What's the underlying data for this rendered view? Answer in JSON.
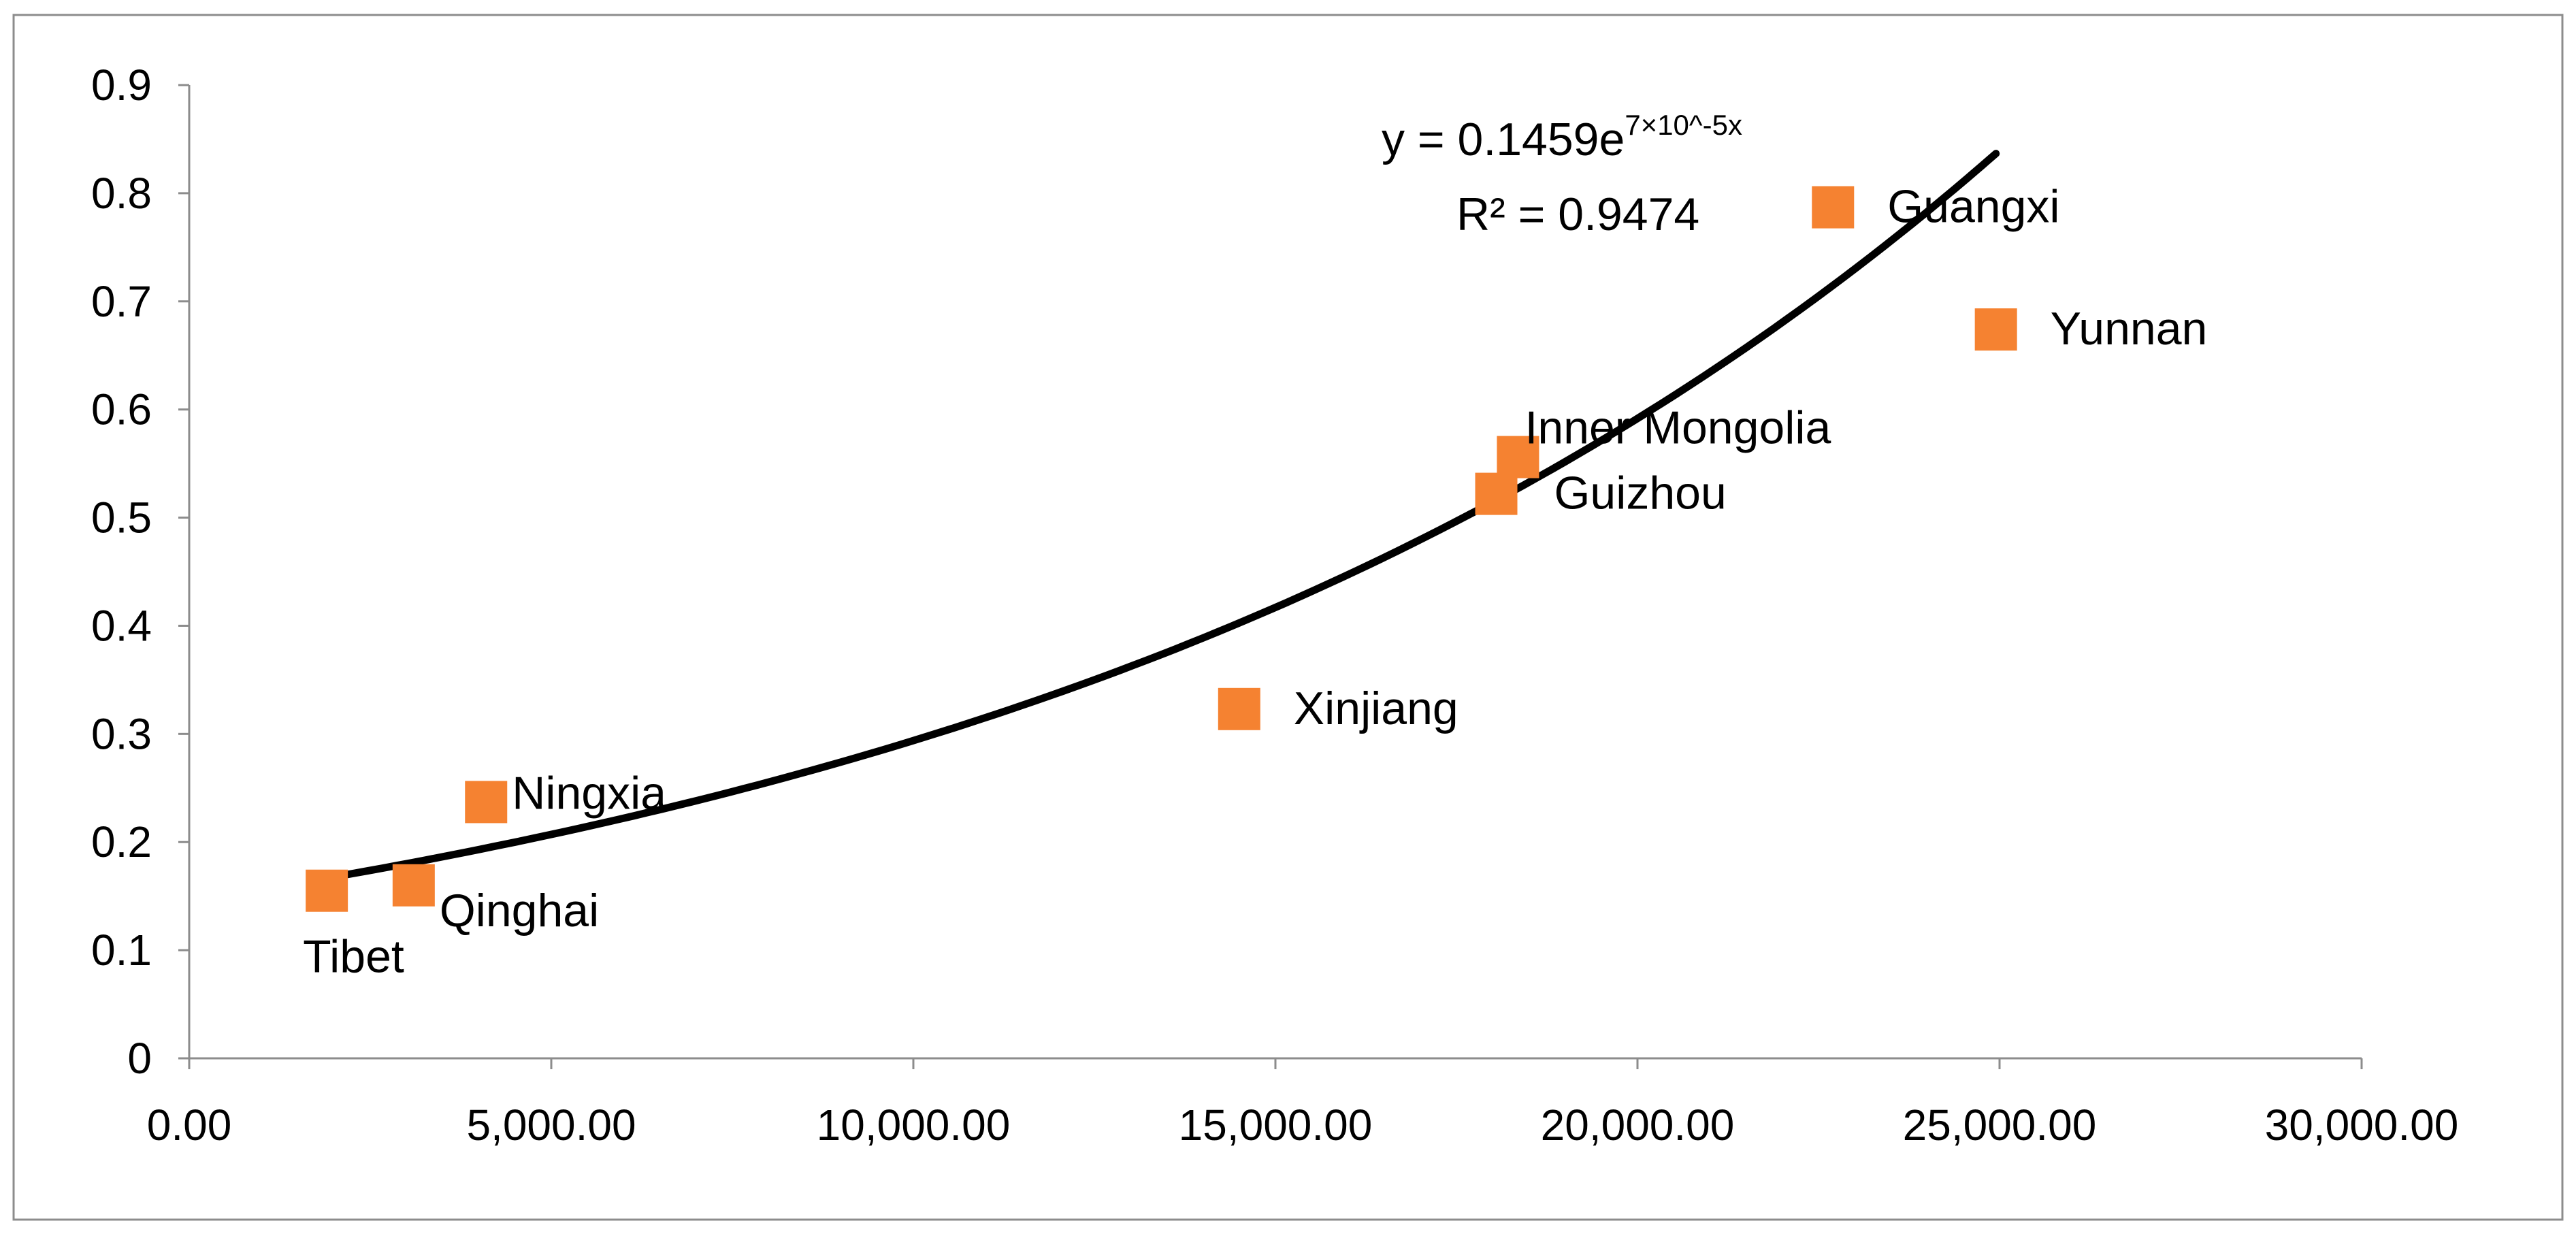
{
  "chart_data": {
    "type": "scatter",
    "title": "",
    "xlabel": "",
    "ylabel": "",
    "xlim": [
      0,
      30000
    ],
    "ylim": [
      0,
      0.9
    ],
    "x_ticks": [
      0,
      5000,
      10000,
      15000,
      20000,
      25000,
      30000
    ],
    "x_tick_labels": [
      "0.00",
      "5,000.00",
      "10,000.00",
      "15,000.00",
      "20,000.00",
      "25,000.00",
      "30,000.00"
    ],
    "y_ticks": [
      0,
      0.1,
      0.2,
      0.3,
      0.4,
      0.5,
      0.6,
      0.7,
      0.8,
      0.9
    ],
    "y_tick_labels": [
      "0",
      "0.1",
      "0.2",
      "0.3",
      "0.4",
      "0.5",
      "0.6",
      "0.7",
      "0.8",
      "0.9"
    ],
    "grid": false,
    "legend": "none",
    "marker_color": "#f58231",
    "series": [
      {
        "points": [
          {
            "label": "Tibet",
            "x": 1900,
            "y": 0.155
          },
          {
            "label": "Qinghai",
            "x": 3100,
            "y": 0.16
          },
          {
            "label": "Ningxia",
            "x": 4100,
            "y": 0.237
          },
          {
            "label": "Xinjiang",
            "x": 14500,
            "y": 0.323
          },
          {
            "label": "Guizhou",
            "x": 18050,
            "y": 0.522
          },
          {
            "label": "Inner Mongolia",
            "x": 18350,
            "y": 0.556
          },
          {
            "label": "Guangxi",
            "x": 22700,
            "y": 0.787
          },
          {
            "label": "Yunnan",
            "x": 24950,
            "y": 0.674
          }
        ]
      }
    ],
    "trendline": {
      "type": "exponential",
      "a": 0.1459,
      "b": 7e-05,
      "x_range": [
        1900,
        24950
      ],
      "color": "#000000",
      "equation_base": "y = 0.1459e",
      "equation_exponent": "7×10^-5x",
      "r_squared_text": "R² = 0.9474"
    }
  }
}
